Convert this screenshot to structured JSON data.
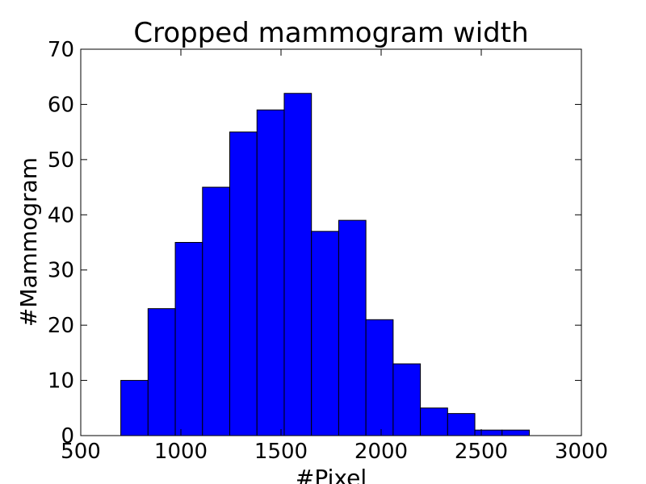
{
  "chart_data": {
    "type": "histogram",
    "title": "Cropped mammogram width",
    "x_label": "#Pixel",
    "y_label": "#Mammogram",
    "bins": [
      700,
      836,
      972,
      1108,
      1244,
      1380,
      1516,
      1652,
      1788,
      1924,
      2060,
      2196,
      2332,
      2468,
      2604,
      2740
    ],
    "values": [
      10,
      23,
      35,
      45,
      55,
      59,
      62,
      37,
      39,
      21,
      13,
      5,
      4,
      1,
      1
    ],
    "color": "#0000ff",
    "xlim": [
      500,
      3000
    ],
    "xticks": [
      500,
      1000,
      1500,
      2000,
      2500,
      3000
    ],
    "ylim": [
      0,
      70
    ],
    "yticks": [
      0,
      10,
      20,
      30,
      40,
      50,
      60,
      70
    ]
  }
}
